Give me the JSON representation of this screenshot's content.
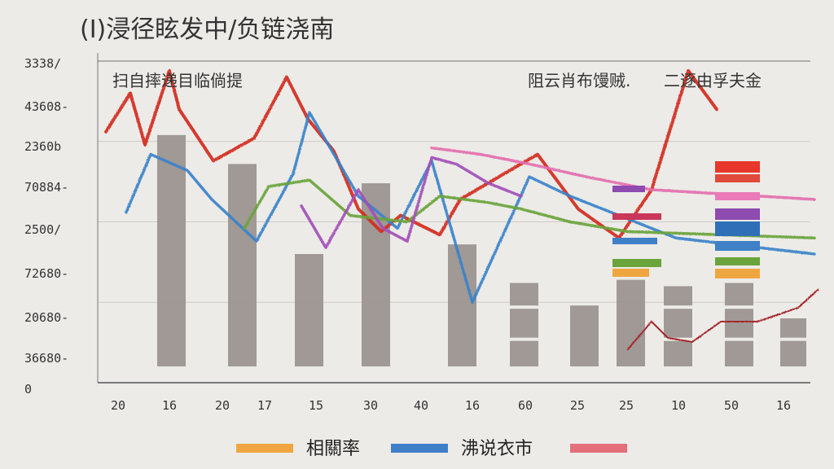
{
  "chart_data": {
    "type": "bar",
    "title": "(I)浸径眩发中/负链浇南",
    "y_ticks": [
      "3338/",
      "43608-",
      "2360b",
      "70884-",
      "2500/",
      "72680-",
      "20680-",
      "36680-",
      "0"
    ],
    "x_ticks": [
      "20",
      "16",
      "20",
      "17",
      "15",
      "30",
      "40",
      "16",
      "60",
      "25",
      "25",
      "10",
      "50",
      "16"
    ],
    "annotations": {
      "left": "扫自摔递目临倘提",
      "right": "阻云肖布馒贼.",
      "right2": "二逐由孚夫金"
    },
    "legend": [
      {
        "label": "相關率",
        "color": "#f0a640"
      },
      {
        "label": "沸说衣市",
        "color": "#3f7fc8"
      },
      {
        "label": "",
        "color": "#e46f7a"
      }
    ],
    "bars": [
      0.77,
      0.68,
      0.4,
      0.62,
      0.43,
      0.31,
      0.24,
      0.32,
      0.3,
      0.31,
      0.2
    ],
    "series": [
      {
        "color": "#d32a1f",
        "values": [
          0.78,
          0.9,
          0.74,
          0.97,
          0.85,
          0.69,
          0.76,
          0.95,
          0.82,
          0.72,
          0.54,
          0.47,
          0.52,
          0.46,
          0.57,
          0.71,
          0.54,
          0.45,
          0.6,
          0.97,
          0.85
        ]
      },
      {
        "color": "#3b82c9",
        "values": [
          0.53,
          0.71,
          0.66,
          0.57,
          0.44,
          0.65,
          0.84,
          0.58,
          0.48,
          0.69,
          0.25,
          0.64,
          0.58,
          0.52,
          0.45,
          0.4
        ]
      },
      {
        "color": "#6aa43a",
        "values": [
          0.48,
          0.61,
          0.63,
          0.52,
          0.5,
          0.58,
          0.56,
          0.54,
          0.5,
          0.47,
          0.45
        ]
      },
      {
        "color": "#a24fb8",
        "values": [
          0.55,
          0.42,
          0.6,
          0.48,
          0.44,
          0.7,
          0.68,
          0.62,
          0.58
        ]
      },
      {
        "color": "#e46fae",
        "values": [
          0.73,
          0.71,
          0.68,
          0.64,
          0.6,
          0.57
        ]
      }
    ],
    "ylim": [
      0,
      1
    ]
  }
}
